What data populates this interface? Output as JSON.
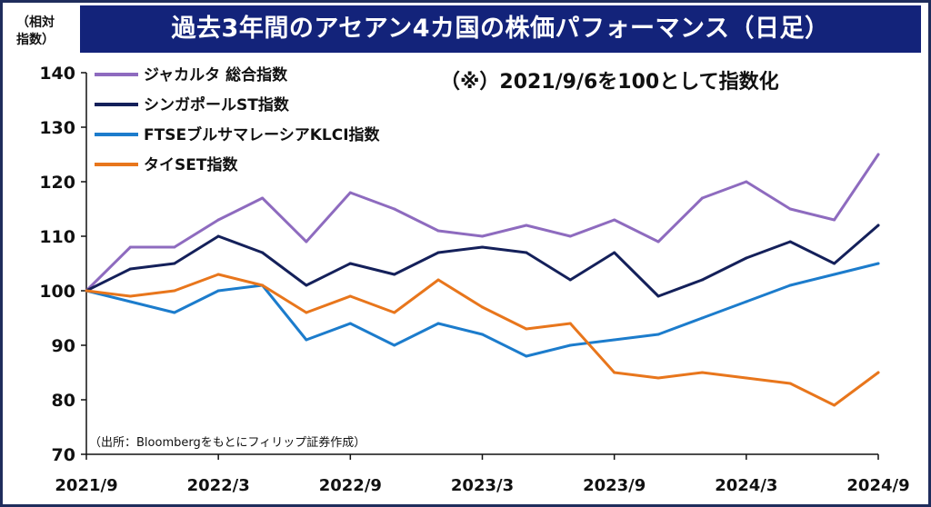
{
  "header": {
    "title": "過去3年間のアセアン4カ国の株価パフォーマンス（日足）",
    "unit_label_line1": "（相対",
    "unit_label_line2": "指数）",
    "note": "（※）2021/9/6を100として指数化",
    "source": "（出所：Bloombergをもとにフィリップ証券作成）"
  },
  "chart_data": {
    "type": "line",
    "ylim": [
      70,
      140
    ],
    "y_ticks": [
      "140",
      "130",
      "120",
      "110",
      "100",
      "90",
      "80",
      "70"
    ],
    "x_ticks": [
      "2021/9",
      "2022/3",
      "2022/9",
      "2023/3",
      "2023/9",
      "2024/3",
      "2024/9"
    ],
    "legend_position": "top-left",
    "grid": false,
    "x": [
      "2021/9",
      "2021/11",
      "2022/1",
      "2022/3",
      "2022/5",
      "2022/7",
      "2022/9",
      "2022/11",
      "2023/1",
      "2023/3",
      "2023/5",
      "2023/7",
      "2023/9",
      "2023/11",
      "2024/1",
      "2024/3",
      "2024/5",
      "2024/7",
      "2024/9"
    ],
    "series": [
      {
        "name": "ジャカルタ 総合指数",
        "color": "#8e6bbf",
        "values": [
          100,
          108,
          108,
          113,
          117,
          109,
          118,
          115,
          111,
          110,
          112,
          110,
          113,
          109,
          117,
          120,
          115,
          113,
          125
        ]
      },
      {
        "name": "シンガポールST指数",
        "color": "#14205a",
        "values": [
          100,
          104,
          105,
          110,
          107,
          101,
          105,
          103,
          107,
          108,
          107,
          102,
          107,
          99,
          102,
          106,
          109,
          105,
          112
        ]
      },
      {
        "name": "FTSEブルサマレーシアKLCI指数",
        "color": "#1c7ccc",
        "values": [
          100,
          98,
          96,
          100,
          101,
          91,
          94,
          90,
          94,
          92,
          88,
          90,
          91,
          92,
          95,
          98,
          101,
          103,
          105
        ]
      },
      {
        "name": "タイSET指数",
        "color": "#e8761c",
        "values": [
          100,
          99,
          100,
          103,
          101,
          96,
          99,
          96,
          102,
          97,
          93,
          94,
          85,
          84,
          85,
          84,
          83,
          79,
          85
        ]
      }
    ]
  }
}
